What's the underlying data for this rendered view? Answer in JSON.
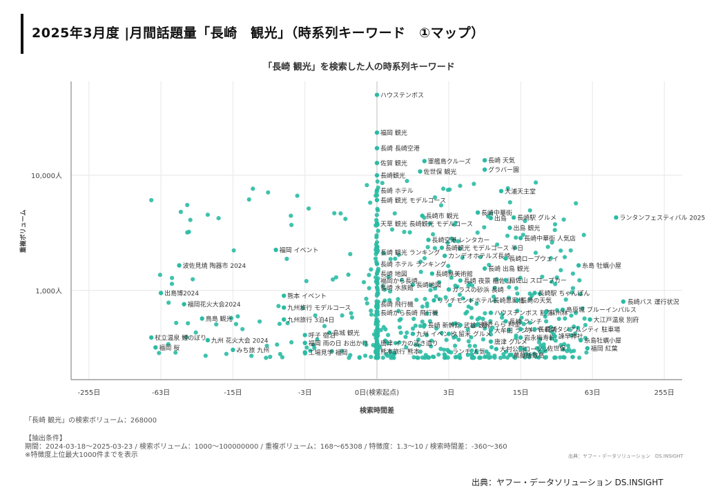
{
  "page": {
    "title": "2025年3月度 |月間話題量「長崎　観光」（時系列キーワード　①マップ）",
    "search_volume_text": "「長崎 観光」の検索ボリューム：268000",
    "conditions_header": "【抽出条件】",
    "conditions_text": "期間：2024-03-18〜2025-03-23 / 検索ボリューム：1000〜100000000 / 重複ボリューム：168〜65308 / 特徴度：1.3〜10 / 検索時間差：-360〜360",
    "conditions_note": "※特徴度上位最大1000件までを表示",
    "source_small": "出典：ヤフー・データソリューション　DS.INSIGHT",
    "source_main": "出典：ヤフー・データソリューション DS.INSIGHT"
  },
  "chart_data": {
    "type": "scatter",
    "title": "「長崎 観光」を検索した人の時系列キーワード",
    "xlabel": "検索時間差",
    "ylabel": "重複ボリューム",
    "x_scale": "symlog",
    "y_scale": "log",
    "xlim": [
      -360,
      360
    ],
    "ylim": [
      168,
      65308
    ],
    "x_ticks": [
      {
        "value": -255,
        "label": "-255日"
      },
      {
        "value": -63,
        "label": "-63日"
      },
      {
        "value": -15,
        "label": "-15日"
      },
      {
        "value": -3,
        "label": "-3日"
      },
      {
        "value": 0,
        "label": "0日(検索起点)"
      },
      {
        "value": 3,
        "label": "3日"
      },
      {
        "value": 15,
        "label": "15日"
      },
      {
        "value": 63,
        "label": "63日"
      },
      {
        "value": 255,
        "label": "255日"
      }
    ],
    "y_ticks": [
      {
        "value": 1000,
        "label": "1,000人"
      },
      {
        "value": 10000,
        "label": "10,000人"
      }
    ],
    "grid": true,
    "point_color": "#2bbba4",
    "labeled_points": [
      {
        "x": 0,
        "y": 50000,
        "label": "ハウステンボス"
      },
      {
        "x": 0,
        "y": 23500,
        "label": "福岡 観光"
      },
      {
        "x": 0,
        "y": 17200,
        "label": "長崎 長崎空港"
      },
      {
        "x": 0,
        "y": 12800,
        "label": "佐賀 観光"
      },
      {
        "x": 1.5,
        "y": 13300,
        "label": "軍艦島クルーズ"
      },
      {
        "x": 7,
        "y": 13500,
        "label": "長崎 天気"
      },
      {
        "x": 7,
        "y": 11200,
        "label": "グラバー園"
      },
      {
        "x": 1.3,
        "y": 10800,
        "label": "佐世保 観光"
      },
      {
        "x": 0,
        "y": 10000,
        "label": "長崎観光"
      },
      {
        "x": 10,
        "y": 7300,
        "label": "大浦天主堂"
      },
      {
        "x": 0,
        "y": 7400,
        "label": "長崎 ホテル"
      },
      {
        "x": 0,
        "y": 6100,
        "label": "長崎 観光 モデルコース"
      },
      {
        "x": 6,
        "y": 4750,
        "label": "長崎中華街"
      },
      {
        "x": 1.4,
        "y": 4450,
        "label": "長崎市 観光"
      },
      {
        "x": 8,
        "y": 4250,
        "label": "出島"
      },
      {
        "x": 13,
        "y": 4300,
        "label": "長崎駅 グルメ"
      },
      {
        "x": 100,
        "y": 4300,
        "label": "ランタンフェスティバル 2025"
      },
      {
        "x": 0,
        "y": 3800,
        "label": "天草 観光 長崎観光 モデルコース"
      },
      {
        "x": 12,
        "y": 3500,
        "label": "出島 観光"
      },
      {
        "x": 1.7,
        "y": 2750,
        "label": "長崎空港 レンタカー"
      },
      {
        "x": 15,
        "y": 2850,
        "label": "長崎中華街 人気店"
      },
      {
        "x": -6,
        "y": 2250,
        "label": "福岡 イベント"
      },
      {
        "x": 0,
        "y": 2150,
        "label": "長崎 観光 ランキング"
      },
      {
        "x": 2.5,
        "y": 2350,
        "label": "長崎観光 モデルコース 半日"
      },
      {
        "x": 2.7,
        "y": 2000,
        "label": "カンデオホテルズ長崎"
      },
      {
        "x": 11,
        "y": 1900,
        "label": "長崎ロープウェイ"
      },
      {
        "x": 48,
        "y": 1650,
        "label": "糸島 牡蠣小屋"
      },
      {
        "x": -44,
        "y": 1650,
        "label": "波佐見焼 陶器市 2024"
      },
      {
        "x": 0,
        "y": 1700,
        "label": "長崎 ホテル ランキング"
      },
      {
        "x": 7,
        "y": 1550,
        "label": "長崎 出島 観光"
      },
      {
        "x": 0,
        "y": 1400,
        "label": "長崎 地図"
      },
      {
        "x": 1.9,
        "y": 1400,
        "label": "長崎県美術館"
      },
      {
        "x": 0,
        "y": 1220,
        "label": "福岡から長崎"
      },
      {
        "x": 4,
        "y": 1220,
        "label": "長崎 夜景 稲佐山"
      },
      {
        "x": 11,
        "y": 1230,
        "label": "稲佐山 スロープカー"
      },
      {
        "x": 1,
        "y": 1120,
        "label": "長崎地図"
      },
      {
        "x": 0,
        "y": 1060,
        "label": "長崎 水族館"
      },
      {
        "x": 3,
        "y": 1020,
        "label": "ガラスの砂浜 長崎"
      },
      {
        "x": 20,
        "y": 950,
        "label": "長崎駅 ちゃんぽん"
      },
      {
        "x": -63,
        "y": 950,
        "label": "出島博2024"
      },
      {
        "x": -5,
        "y": 900,
        "label": "熊本 イベント"
      },
      {
        "x": 115,
        "y": 800,
        "label": "長崎バス 運行状況"
      },
      {
        "x": 2,
        "y": 820,
        "label": "リッチモンドホテル長崎思案橋"
      },
      {
        "x": 14,
        "y": 820,
        "label": "長崎の天気"
      },
      {
        "x": -40,
        "y": 760,
        "label": "福岡花火大会2024"
      },
      {
        "x": 0,
        "y": 760,
        "label": "長崎 飛行機"
      },
      {
        "x": 35,
        "y": 680,
        "label": "島原城 ブルーインパルス"
      },
      {
        "x": -5,
        "y": 710,
        "label": "九州旅行 モデルコース"
      },
      {
        "x": 0,
        "y": 640,
        "label": "長崎から長崎 飛行機"
      },
      {
        "x": 8,
        "y": 640,
        "label": "ハウステンボス 割引"
      },
      {
        "x": 25,
        "y": 640,
        "label": "蘇州林"
      },
      {
        "x": -28,
        "y": 570,
        "label": "鳥島 観光"
      },
      {
        "x": -5,
        "y": 560,
        "label": "九州旅行 3泊4日"
      },
      {
        "x": 60,
        "y": 560,
        "label": "大江戸温泉 別府"
      },
      {
        "x": 11,
        "y": 540,
        "label": "長崎 ランチ"
      },
      {
        "x": 1.5,
        "y": 500,
        "label": "長崎 新幹線"
      },
      {
        "x": 4,
        "y": 500,
        "label": "武雄 観光"
      },
      {
        "x": 6,
        "y": 510,
        "label": "福きらら 料金"
      },
      {
        "x": 8,
        "y": 450,
        "label": "大牟田 ランチ"
      },
      {
        "x": 15,
        "y": 460,
        "label": "かにや 長崎"
      },
      {
        "x": 20,
        "y": 460,
        "label": "長崎スタジアムシティ 駐車場"
      },
      {
        "x": -1.5,
        "y": 430,
        "label": "島城 観光"
      },
      {
        "x": 1,
        "y": 420,
        "label": "九州 イベント"
      },
      {
        "x": 3,
        "y": 420,
        "label": "久留米 グルメ"
      },
      {
        "x": -3,
        "y": 410,
        "label": "呼子 宿泊"
      },
      {
        "x": -76,
        "y": 390,
        "label": "杖立温泉 鯉のぼり"
      },
      {
        "x": -25,
        "y": 370,
        "label": "九州 花火大会 2024"
      },
      {
        "x": 15,
        "y": 390,
        "label": "岩永梅寿軒"
      },
      {
        "x": 30,
        "y": 400,
        "label": "諫早神社"
      },
      {
        "x": 50,
        "y": 370,
        "label": "糸島牡蠣小屋"
      },
      {
        "x": 8,
        "y": 360,
        "label": "唐津 グルメ"
      },
      {
        "x": -3,
        "y": 350,
        "label": "福岡 雨の日 お出かけ"
      },
      {
        "x": 0,
        "y": 350,
        "label": "唐津 イカの活き造り"
      },
      {
        "x": -70,
        "y": 320,
        "label": "福岡 桜"
      },
      {
        "x": -15,
        "y": 305,
        "label": "みち旅 九州"
      },
      {
        "x": 9,
        "y": 310,
        "label": "大村公園"
      },
      {
        "x": 15,
        "y": 310,
        "label": "ローソン"
      },
      {
        "x": 24,
        "y": 315,
        "label": "佐世保"
      },
      {
        "x": 57,
        "y": 315,
        "label": "福岡 紅葉"
      },
      {
        "x": -3,
        "y": 290,
        "label": "工場見学 福岡"
      },
      {
        "x": 0,
        "y": 295,
        "label": "熊本旅行 熊本"
      },
      {
        "x": 3,
        "y": 295,
        "label": "ランチ 人気"
      },
      {
        "x": 12,
        "y": 275,
        "label": "萬藤飯数島"
      }
    ]
  }
}
